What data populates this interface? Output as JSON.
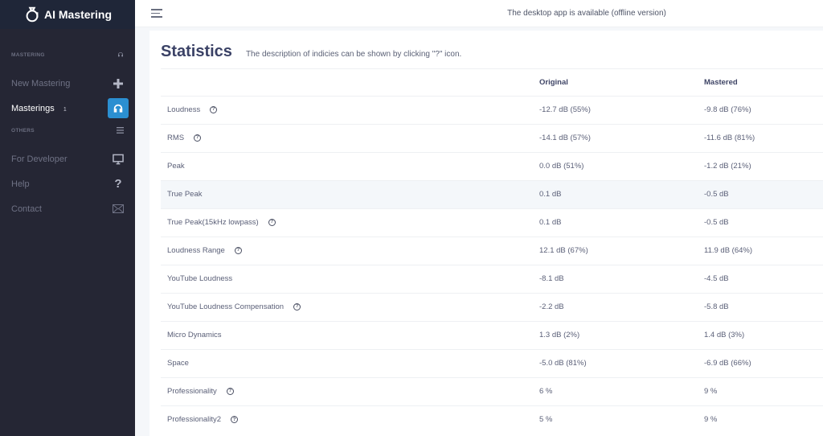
{
  "app": {
    "name": "AI Mastering"
  },
  "sidebar": {
    "sections": [
      {
        "label": "MASTERING",
        "icon": "headphones-icon"
      },
      {
        "label": "OTHERS",
        "icon": "list-icon"
      }
    ],
    "items": [
      {
        "label": "New Mastering",
        "icon": "plus-icon"
      },
      {
        "label": "Masterings",
        "count": "1",
        "icon": "headphones-icon",
        "active": true
      },
      {
        "label": "For Developer",
        "icon": "monitor-icon"
      },
      {
        "label": "Help",
        "icon": "question-icon",
        "glyph": "?"
      },
      {
        "label": "Contact",
        "icon": "mail-icon"
      }
    ]
  },
  "topbar": {
    "note": "The desktop app is available (offline version)"
  },
  "page": {
    "title": "Statistics",
    "subtitle": "The description of indicies can be shown by clicking \"?\" icon."
  },
  "table": {
    "headers": [
      "",
      "Original",
      "Mastered"
    ],
    "help_glyph": "?",
    "rows": [
      {
        "label": "Loudness",
        "help": true,
        "original": "-12.7 dB (55%)",
        "mastered": "-9.8 dB (76%)"
      },
      {
        "label": "RMS",
        "help": true,
        "original": "-14.1 dB (57%)",
        "mastered": "-11.6 dB (81%)"
      },
      {
        "label": "Peak",
        "help": false,
        "original": "0.0 dB (51%)",
        "mastered": "-1.2 dB (21%)"
      },
      {
        "label": "True Peak",
        "help": false,
        "original": "0.1 dB",
        "mastered": "-0.5 dB",
        "highlight": true
      },
      {
        "label": "True Peak(15kHz lowpass)",
        "help": true,
        "original": "0.1 dB",
        "mastered": "-0.5 dB"
      },
      {
        "label": "Loudness Range",
        "help": true,
        "original": "12.1 dB (67%)",
        "mastered": "11.9 dB (64%)"
      },
      {
        "label": "YouTube Loudness",
        "help": false,
        "original": "-8.1 dB",
        "mastered": "-4.5 dB"
      },
      {
        "label": "YouTube Loudness Compensation",
        "help": true,
        "original": "-2.2 dB",
        "mastered": "-5.8 dB"
      },
      {
        "label": "Micro Dynamics",
        "help": false,
        "original": "1.3 dB (2%)",
        "mastered": "1.4 dB (3%)"
      },
      {
        "label": "Space",
        "help": false,
        "original": "-5.0 dB (81%)",
        "mastered": "-6.9 dB (66%)"
      },
      {
        "label": "Professionality",
        "help": true,
        "original": "6 %",
        "mastered": "9 %"
      },
      {
        "label": "Professionality2",
        "help": true,
        "original": "5 %",
        "mastered": "9 %"
      }
    ]
  },
  "colors": {
    "sidebar_bg": "#252634",
    "logo_bg": "#1f2638",
    "accent": "#2b8fd1",
    "title": "#3b4266"
  }
}
